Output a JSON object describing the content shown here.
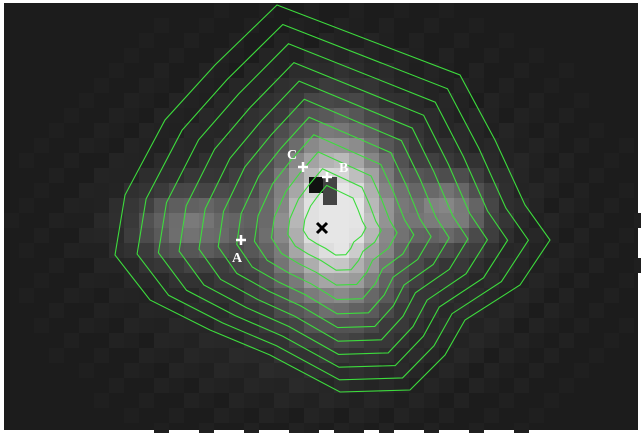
{
  "markers": [
    {
      "label": "A"
    },
    {
      "label": "B"
    },
    {
      "label": "C"
    }
  ]
}
